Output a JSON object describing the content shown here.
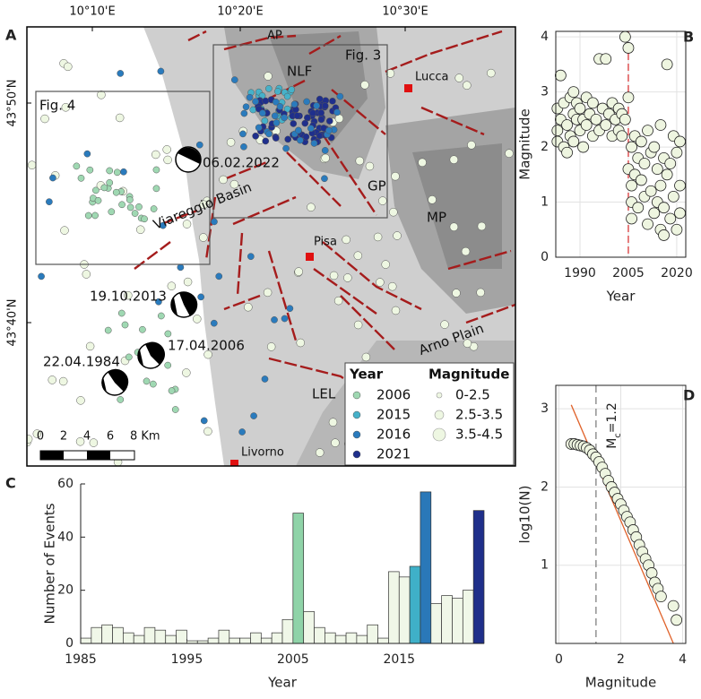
{
  "map": {
    "panel": "A",
    "lon_ticks": [
      "10°10'E",
      "10°20'E",
      "10°30'E"
    ],
    "lat_ticks": [
      "43°50'N",
      "43°40'N"
    ],
    "labels": {
      "ap": "AP",
      "nlf": "NLF",
      "fig3": "Fig. 3",
      "lucca": "Lucca",
      "fig4": "Fig. 4",
      "d2022": "06.02.2022",
      "viareggio": "Viareggio Basin",
      "gp": "GP",
      "mp": "MP",
      "pisa": "Pisa",
      "d2013": "19.10.2013",
      "d2006": "17.04.2006",
      "d1984": "22.04.1984",
      "arno": "Arno Plain",
      "lel": "LEL",
      "livorno": "Livorno"
    },
    "legend": {
      "year_title": "Year",
      "years": [
        "2006",
        "2015",
        "2016",
        "2021"
      ],
      "year_colors": [
        "#9fd8b2",
        "#46b1c9",
        "#2a7bbd",
        "#1f2f8c"
      ],
      "mag_title": "Magnitude",
      "mags": [
        "0-2.5",
        "2.5-3.5",
        "3.5-4.5"
      ]
    },
    "scale": [
      "0",
      "2",
      "4",
      "6",
      "8 Km"
    ]
  },
  "chart_data": [
    {
      "type": "histogram",
      "panel": "C",
      "bins": [
        1985,
        1986,
        1987,
        1988,
        1989,
        1990,
        1991,
        1992,
        1993,
        1994,
        1995,
        1996,
        1997,
        1998,
        1999,
        2000,
        2001,
        2002,
        2003,
        2004,
        2005,
        2006,
        2007,
        2008,
        2009,
        2010,
        2011,
        2012,
        2013,
        2014,
        2015,
        2016,
        2017,
        2018,
        2019,
        2020,
        2021,
        2022,
        2023
      ],
      "counts": [
        2,
        6,
        7,
        6,
        4,
        3,
        6,
        5,
        3,
        5,
        1,
        1,
        2,
        5,
        2,
        2,
        4,
        2,
        4,
        9,
        49,
        12,
        6,
        4,
        3,
        4,
        3,
        7,
        2,
        27,
        25,
        29,
        57,
        15,
        18,
        17,
        20,
        50
      ],
      "colors": [
        "#f0f7e8",
        "#f0f7e8",
        "#f0f7e8",
        "#f0f7e8",
        "#f0f7e8",
        "#f0f7e8",
        "#f0f7e8",
        "#f0f7e8",
        "#f0f7e8",
        "#f0f7e8",
        "#f0f7e8",
        "#f0f7e8",
        "#f0f7e8",
        "#f0f7e8",
        "#f0f7e8",
        "#f0f7e8",
        "#f0f7e8",
        "#f0f7e8",
        "#f0f7e8",
        "#f0f7e8",
        "#8fd3a8",
        "#f0f7e8",
        "#f0f7e8",
        "#f0f7e8",
        "#f0f7e8",
        "#f0f7e8",
        "#f0f7e8",
        "#f0f7e8",
        "#f0f7e8",
        "#f0f7e8",
        "#f0f7e8",
        "#3fb0c8",
        "#2a78b8",
        "#f0f7e8",
        "#f0f7e8",
        "#f0f7e8",
        "#f0f7e8",
        "#1f2f8a"
      ],
      "xlim": [
        1985,
        2023
      ],
      "xticks": [
        1985,
        1995,
        2005,
        2015
      ],
      "ylim": [
        0,
        60
      ],
      "yticks": [
        0,
        20,
        40,
        60
      ],
      "xlabel": "Year",
      "ylabel": "Number of Events"
    },
    {
      "type": "scatter",
      "panel": "B",
      "color": "#eef5e0",
      "x": [
        1983,
        1983,
        1983,
        1984,
        1984,
        1985,
        1985,
        1986,
        1986,
        1987,
        1987,
        1988,
        1988,
        1988,
        1989,
        1989,
        1990,
        1990,
        1991,
        1991,
        1992,
        1992,
        1993,
        1994,
        1994,
        1995,
        1996,
        1996,
        1997,
        1998,
        1998,
        1999,
        2000,
        2000,
        2001,
        2002,
        2002,
        2003,
        2003,
        2004,
        2004,
        2005,
        2005,
        2005,
        2006,
        2006,
        2006,
        2006,
        2007,
        2007,
        2008,
        2008,
        2009,
        2009,
        2010,
        2010,
        2011,
        2011,
        2012,
        2012,
        2013,
        2013,
        2014,
        2014,
        2015,
        2015,
        2015,
        2016,
        2016,
        2016,
        2017,
        2017,
        2018,
        2018,
        2019,
        2019,
        2020,
        2020,
        2021,
        2021,
        2021
      ],
      "y": [
        2.7,
        2.3,
        2.1,
        3.3,
        2.5,
        2.0,
        2.8,
        2.4,
        1.9,
        2.9,
        2.2,
        3.0,
        2.6,
        2.1,
        2.5,
        2.8,
        2.3,
        2.7,
        2.0,
        2.5,
        2.4,
        2.9,
        2.6,
        2.2,
        2.8,
        2.5,
        3.6,
        2.3,
        2.7,
        3.6,
        2.4,
        2.6,
        2.8,
        2.2,
        2.5,
        2.3,
        2.7,
        2.6,
        2.2,
        4.0,
        2.5,
        3.8,
        2.9,
        1.6,
        1.3,
        2.0,
        1.0,
        0.7,
        2.2,
        1.5,
        1.8,
        0.9,
        2.1,
        1.4,
        1.7,
        1.1,
        2.3,
        0.6,
        1.9,
        1.2,
        2.0,
        0.8,
        1.6,
        1.0,
        2.4,
        1.3,
        0.5,
        1.8,
        0.9,
        0.4,
        3.5,
        1.5,
        1.7,
        0.7,
        2.2,
        1.1,
        1.9,
        0.5,
        2.1,
        1.3,
        0.8
      ],
      "xlim": [
        1982.5,
        2022.8
      ],
      "xticks": [
        1990,
        2005,
        2020
      ],
      "ylim": [
        0,
        4.1
      ],
      "yticks": [
        0,
        1,
        2,
        3,
        4
      ],
      "grid": true,
      "vline": {
        "value": 2005,
        "color": "#d62728"
      },
      "xlabel": "Year",
      "ylabel": "Magnitude"
    },
    {
      "type": "scatter",
      "panel": "D",
      "color": "#eef5e0",
      "x": [
        0.4,
        0.5,
        0.6,
        0.7,
        0.8,
        0.9,
        1.0,
        1.1,
        1.2,
        1.3,
        1.4,
        1.5,
        1.6,
        1.7,
        1.8,
        1.9,
        2.0,
        2.1,
        2.2,
        2.3,
        2.4,
        2.5,
        2.6,
        2.7,
        2.8,
        2.9,
        3.0,
        3.1,
        3.2,
        3.3,
        3.7,
        3.8
      ],
      "y": [
        2.55,
        2.55,
        2.54,
        2.53,
        2.52,
        2.5,
        2.47,
        2.42,
        2.38,
        2.32,
        2.25,
        2.17,
        2.08,
        2.0,
        1.93,
        1.85,
        1.78,
        1.7,
        1.62,
        1.55,
        1.45,
        1.36,
        1.26,
        1.17,
        1.08,
        1.0,
        0.9,
        0.78,
        0.7,
        0.6,
        0.48,
        0.3
      ],
      "xlim": [
        -0.1,
        4.1
      ],
      "xticks": [
        0,
        2,
        4
      ],
      "ylim": [
        0,
        3.3
      ],
      "yticks": [
        1,
        2,
        3
      ],
      "grid": true,
      "fit": {
        "x": [
          0.4,
          3.7
        ],
        "y": [
          3.05,
          0
        ],
        "color": "#e0622a"
      },
      "mc": {
        "value": 1.2,
        "main": "M",
        "sub": "c",
        "rest": "=1.2"
      },
      "xlabel": "Magnitude",
      "ylabel": "log10(N)"
    }
  ]
}
